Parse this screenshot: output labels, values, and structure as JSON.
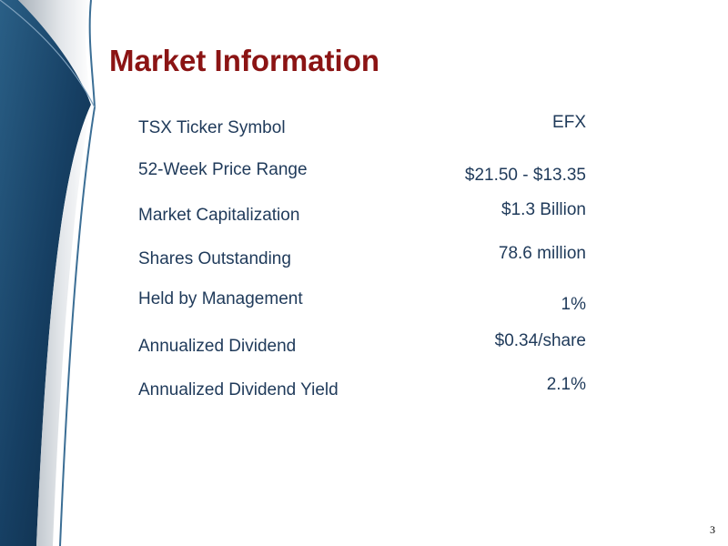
{
  "slide": {
    "title": "Market Information",
    "page_number": "3"
  },
  "rows": [
    {
      "label": "TSX Ticker Symbol",
      "value": "EFX"
    },
    {
      "label": "52-Week Price Range",
      "value": "$21.50 - $13.35"
    },
    {
      "label": "Market Capitalization",
      "value": "$1.3 Billion"
    },
    {
      "label": "Shares Outstanding",
      "value": "78.6 million"
    },
    {
      "label": "Held by Management",
      "value": "1%"
    },
    {
      "label": "Annualized Dividend",
      "value": "$0.34/share"
    },
    {
      "label": "Annualized Dividend Yield",
      "value": "2.1%"
    }
  ],
  "colors": {
    "title": "#8b1414",
    "text": "#1f3a5a",
    "accent_dark": "#0f2f4d"
  }
}
